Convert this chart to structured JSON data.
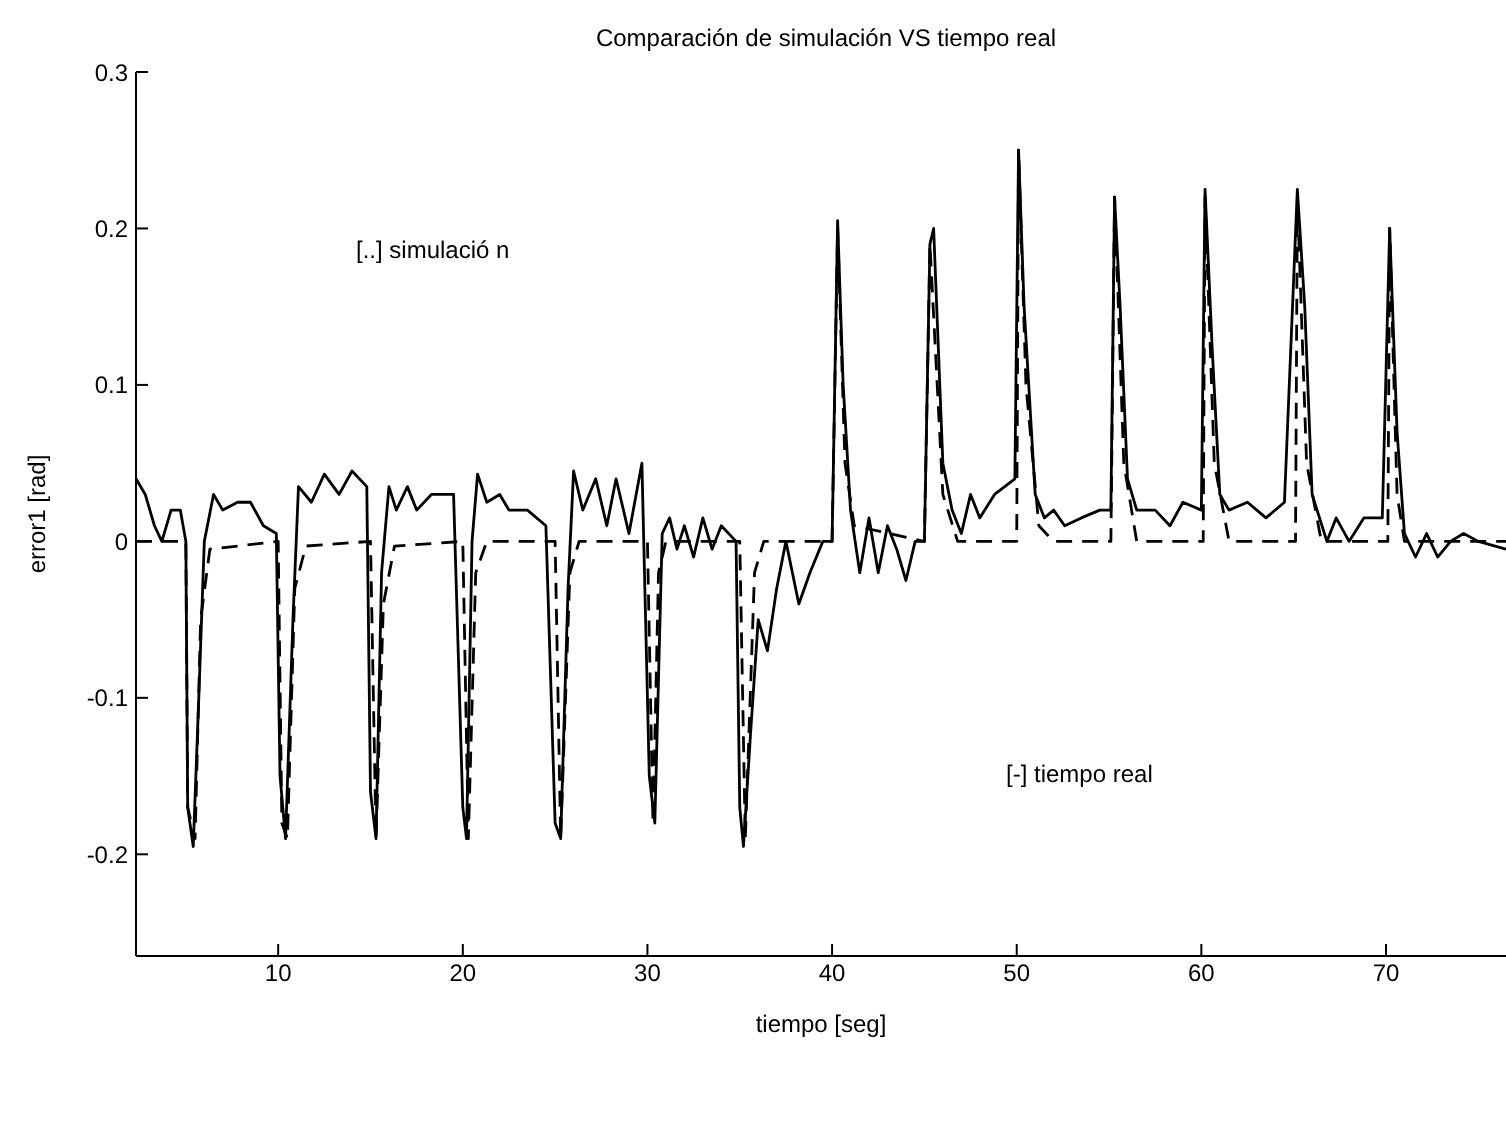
{
  "chart_data": {
    "type": "line",
    "title": "Comparación de simulación VS tiempo real",
    "xlabel": "tiempo [seg]",
    "ylabel": "error1  [rad]",
    "annotations": [
      "[..] simulació n",
      "[-] tiempo real"
    ],
    "xlim": [
      2.3,
      76.5
    ],
    "xticks": [
      10,
      20,
      30,
      40,
      50,
      60,
      70
    ],
    "ylim": [
      -0.265,
      0.3
    ],
    "yticks": [
      -0.2,
      -0.1,
      0,
      0.1,
      0.2,
      0.3
    ],
    "marker": "none",
    "series": [
      {
        "line_style": "solid",
        "color": "#000000",
        "x": [
          2.3,
          2.8,
          3.3,
          3.7,
          4.2,
          4.7,
          5.0,
          5.1,
          5.4,
          5.7,
          6.0,
          6.5,
          7.0,
          7.8,
          8.5,
          9.2,
          9.9,
          10.1,
          10.4,
          10.8,
          11.1,
          11.8,
          12.5,
          13.3,
          14.0,
          14.8,
          15.0,
          15.3,
          15.6,
          16.0,
          16.4,
          17.0,
          17.5,
          18.3,
          19.5,
          20.0,
          20.2,
          20.5,
          20.8,
          21.3,
          22.0,
          22.5,
          23.5,
          24.5,
          25.0,
          25.3,
          25.7,
          26.0,
          26.5,
          27.2,
          27.8,
          28.3,
          29.0,
          29.7,
          30.1,
          30.4,
          30.8,
          31.2,
          31.6,
          32.0,
          32.5,
          33.0,
          33.5,
          34.0,
          34.8,
          35.0,
          35.2,
          35.6,
          36.0,
          36.5,
          37.0,
          37.5,
          38.2,
          38.8,
          39.5,
          40.0,
          40.3,
          40.6,
          41.0,
          41.5,
          42.0,
          42.5,
          43.0,
          43.5,
          44.0,
          44.5,
          45.0,
          45.3,
          45.5,
          46.0,
          46.5,
          47.0,
          47.5,
          48.0,
          48.8,
          49.9,
          50.1,
          50.4,
          51.0,
          51.5,
          52.0,
          52.6,
          53.5,
          54.5,
          55.1,
          55.3,
          55.6,
          56.0,
          56.5,
          57.5,
          58.3,
          59.0,
          60.0,
          60.2,
          60.6,
          61.0,
          61.5,
          62.5,
          63.5,
          64.5,
          65.2,
          65.6,
          66.0,
          66.8,
          67.3,
          68.0,
          68.8,
          69.8,
          70.2,
          70.6,
          71.0,
          71.6,
          72.2,
          72.8,
          73.5,
          74.2,
          75.0,
          76.5
        ],
        "values": [
          0.04,
          0.03,
          0.01,
          0.0,
          0.02,
          0.02,
          0.0,
          -0.17,
          -0.195,
          -0.1,
          0.0,
          0.03,
          0.02,
          0.025,
          0.025,
          0.01,
          0.005,
          -0.15,
          -0.19,
          -0.05,
          0.035,
          0.025,
          0.043,
          0.03,
          0.045,
          0.035,
          -0.16,
          -0.19,
          -0.02,
          0.035,
          0.02,
          0.035,
          0.02,
          0.03,
          0.03,
          -0.17,
          -0.19,
          0.0,
          0.043,
          0.025,
          0.03,
          0.02,
          0.02,
          0.01,
          -0.18,
          -0.19,
          -0.03,
          0.045,
          0.02,
          0.04,
          0.01,
          0.04,
          0.005,
          0.05,
          -0.15,
          -0.18,
          0.005,
          0.015,
          -0.005,
          0.01,
          -0.01,
          0.015,
          -0.005,
          0.01,
          0.0,
          -0.17,
          -0.195,
          -0.12,
          -0.05,
          -0.07,
          -0.03,
          0.0,
          -0.04,
          -0.02,
          0.0,
          0.0,
          0.205,
          0.1,
          0.02,
          -0.02,
          0.015,
          -0.02,
          0.01,
          -0.005,
          -0.025,
          0.0,
          0.0,
          0.19,
          0.2,
          0.05,
          0.02,
          0.005,
          0.03,
          0.015,
          0.03,
          0.04,
          0.25,
          0.15,
          0.03,
          0.015,
          0.02,
          0.01,
          0.015,
          0.02,
          0.02,
          0.22,
          0.15,
          0.04,
          0.02,
          0.02,
          0.01,
          0.025,
          0.02,
          0.225,
          0.12,
          0.03,
          0.02,
          0.025,
          0.015,
          0.025,
          0.225,
          0.15,
          0.03,
          0.0,
          0.015,
          0.0,
          0.015,
          0.015,
          0.2,
          0.07,
          0.005,
          -0.01,
          0.005,
          -0.01,
          0.0,
          0.005,
          0.0,
          -0.005
        ]
      },
      {
        "line_style": "dashed",
        "color": "#000000",
        "x": [
          2.3,
          5.0,
          5.1,
          5.5,
          5.8,
          6.3,
          10.0,
          10.2,
          10.5,
          10.9,
          11.5,
          15.0,
          15.3,
          15.7,
          16.3,
          20.0,
          20.3,
          20.7,
          21.3,
          25.0,
          25.3,
          25.8,
          26.3,
          30.0,
          30.3,
          30.6,
          31.0,
          35.0,
          35.3,
          35.8,
          36.3,
          40.0,
          40.3,
          40.7,
          41.2,
          45.0,
          45.3,
          46.0,
          46.8,
          50.0,
          50.1,
          50.5,
          51.2,
          52.0,
          55.1,
          55.3,
          55.8,
          56.5,
          60.1,
          60.2,
          60.7,
          61.5,
          65.1,
          65.2,
          65.7,
          66.5,
          70.1,
          70.2,
          70.6,
          71.0,
          76.5
        ],
        "values": [
          0,
          0,
          -0.17,
          -0.19,
          -0.05,
          -0.005,
          0,
          -0.18,
          -0.19,
          -0.03,
          -0.003,
          0,
          -0.19,
          -0.04,
          -0.003,
          0,
          -0.19,
          -0.02,
          0,
          0,
          -0.19,
          -0.02,
          0,
          0,
          -0.18,
          -0.02,
          0,
          0,
          -0.19,
          -0.02,
          0,
          0,
          0.2,
          0.05,
          0.01,
          0,
          0.19,
          0.03,
          0,
          0,
          0.25,
          0.1,
          0.01,
          0,
          0,
          0.22,
          0.05,
          0,
          0,
          0.22,
          0.05,
          0,
          0,
          0.22,
          0.05,
          0,
          0,
          0.2,
          0.03,
          0,
          0
        ]
      }
    ]
  }
}
